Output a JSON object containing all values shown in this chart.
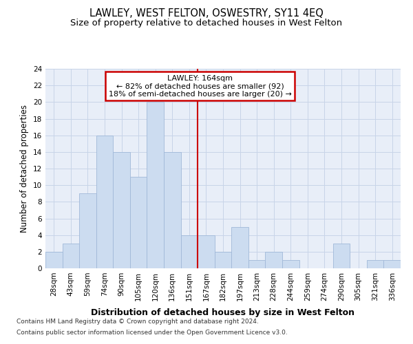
{
  "title": "LAWLEY, WEST FELTON, OSWESTRY, SY11 4EQ",
  "subtitle": "Size of property relative to detached houses in West Felton",
  "xlabel": "Distribution of detached houses by size in West Felton",
  "ylabel": "Number of detached properties",
  "footnote1": "Contains HM Land Registry data © Crown copyright and database right 2024.",
  "footnote2": "Contains public sector information licensed under the Open Government Licence v3.0.",
  "bar_labels": [
    "28sqm",
    "43sqm",
    "59sqm",
    "74sqm",
    "90sqm",
    "105sqm",
    "120sqm",
    "136sqm",
    "151sqm",
    "167sqm",
    "182sqm",
    "197sqm",
    "213sqm",
    "228sqm",
    "244sqm",
    "259sqm",
    "274sqm",
    "290sqm",
    "305sqm",
    "321sqm",
    "336sqm"
  ],
  "bar_values": [
    2,
    3,
    9,
    16,
    14,
    11,
    20,
    14,
    4,
    4,
    2,
    5,
    1,
    2,
    1,
    0,
    0,
    3,
    0,
    1,
    1
  ],
  "bar_color": "#ccdcf0",
  "bar_edge_color": "#a0b8d8",
  "vline_index": 9,
  "vline_color": "#cc0000",
  "annotation_line1": "LAWLEY: 164sqm",
  "annotation_line2": "← 82% of detached houses are smaller (92)",
  "annotation_line3": "18% of semi-detached houses are larger (20) →",
  "annotation_box_color": "#cc0000",
  "ylim": [
    0,
    24
  ],
  "yticks": [
    0,
    2,
    4,
    6,
    8,
    10,
    12,
    14,
    16,
    18,
    20,
    22,
    24
  ],
  "grid_color": "#c8d4e8",
  "bg_color": "#e8eef8",
  "title_fontsize": 10.5,
  "subtitle_fontsize": 9.5,
  "xlabel_fontsize": 9,
  "ylabel_fontsize": 8.5,
  "tick_fontsize": 7.5,
  "annotation_fontsize": 8,
  "footnote_fontsize": 6.5
}
